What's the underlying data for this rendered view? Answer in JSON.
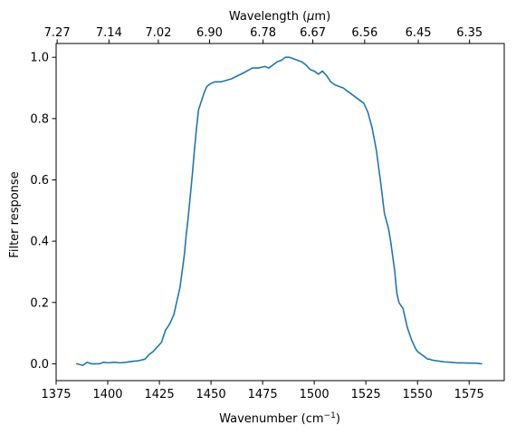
{
  "chart_data": {
    "type": "line",
    "xlabel": "Wavenumber (cm",
    "xlabel_sup": "−1",
    "xlabel_close": ")",
    "ylabel": "Filter response",
    "top_xlabel_pre": "Wavelength (",
    "top_xlabel_mu": "μ",
    "top_xlabel_post": "m)",
    "xlim": [
      1375,
      1592
    ],
    "ylim": [
      -0.055,
      1.045
    ],
    "x_ticks": [
      1375,
      1400,
      1425,
      1450,
      1475,
      1500,
      1525,
      1550,
      1575
    ],
    "x_tick_labels": [
      "1375",
      "1400",
      "1425",
      "1450",
      "1475",
      "1500",
      "1525",
      "1550",
      "1575"
    ],
    "y_ticks": [
      0.0,
      0.2,
      0.4,
      0.6,
      0.8,
      1.0
    ],
    "y_tick_labels": [
      "0.0",
      "0.2",
      "0.4",
      "0.6",
      "0.8",
      "1.0"
    ],
    "top_ticks_wavenumber": [
      1375.5,
      1400.6,
      1424.5,
      1449.3,
      1475.2,
      1499.3,
      1524.4,
      1550.4,
      1575.2
    ],
    "top_tick_labels": [
      "7.27",
      "7.14",
      "7.02",
      "6.90",
      "6.78",
      "6.67",
      "6.56",
      "6.45",
      "6.35"
    ],
    "grid": false,
    "series": [
      {
        "color": "#1f77b4",
        "x": [
          1385,
          1388,
          1390,
          1392,
          1394,
          1396,
          1398,
          1400,
          1403,
          1406,
          1409,
          1412,
          1415,
          1418,
          1420,
          1422,
          1424,
          1426,
          1427,
          1428,
          1430,
          1432,
          1434,
          1435,
          1436,
          1437,
          1438,
          1439,
          1440,
          1441,
          1442,
          1443,
          1444,
          1445,
          1446,
          1447,
          1448,
          1450,
          1452,
          1455,
          1460,
          1463,
          1466,
          1470,
          1473,
          1476,
          1478,
          1480,
          1482,
          1484,
          1486,
          1488,
          1490,
          1492,
          1494,
          1496,
          1498,
          1500,
          1502,
          1504,
          1506,
          1508,
          1510,
          1512,
          1514,
          1516,
          1518,
          1520,
          1522,
          1524,
          1526,
          1528,
          1530,
          1532,
          1534,
          1536,
          1537,
          1538,
          1539,
          1540,
          1541,
          1542,
          1543,
          1544,
          1545,
          1546,
          1547,
          1548,
          1549,
          1550,
          1551,
          1552,
          1553,
          1554,
          1555,
          1556,
          1557,
          1559,
          1561,
          1563,
          1566,
          1569,
          1572,
          1575,
          1578,
          1581
        ],
        "y": [
          0.0,
          -0.005,
          0.005,
          0.0,
          0.0,
          0.0,
          0.005,
          0.003,
          0.005,
          0.003,
          0.005,
          0.008,
          0.01,
          0.015,
          0.03,
          0.04,
          0.055,
          0.07,
          0.09,
          0.11,
          0.13,
          0.16,
          0.22,
          0.25,
          0.3,
          0.35,
          0.42,
          0.48,
          0.55,
          0.62,
          0.7,
          0.77,
          0.83,
          0.85,
          0.87,
          0.89,
          0.905,
          0.915,
          0.92,
          0.92,
          0.93,
          0.94,
          0.95,
          0.965,
          0.965,
          0.97,
          0.965,
          0.975,
          0.985,
          0.99,
          1.0,
          1.0,
          0.995,
          0.99,
          0.985,
          0.975,
          0.96,
          0.955,
          0.945,
          0.955,
          0.94,
          0.92,
          0.91,
          0.905,
          0.9,
          0.89,
          0.88,
          0.87,
          0.86,
          0.85,
          0.82,
          0.77,
          0.7,
          0.6,
          0.49,
          0.44,
          0.4,
          0.35,
          0.3,
          0.23,
          0.2,
          0.19,
          0.18,
          0.15,
          0.12,
          0.1,
          0.08,
          0.065,
          0.05,
          0.04,
          0.035,
          0.03,
          0.025,
          0.02,
          0.015,
          0.015,
          0.012,
          0.01,
          0.008,
          0.006,
          0.005,
          0.003,
          0.003,
          0.002,
          0.002,
          0.0
        ]
      }
    ]
  }
}
